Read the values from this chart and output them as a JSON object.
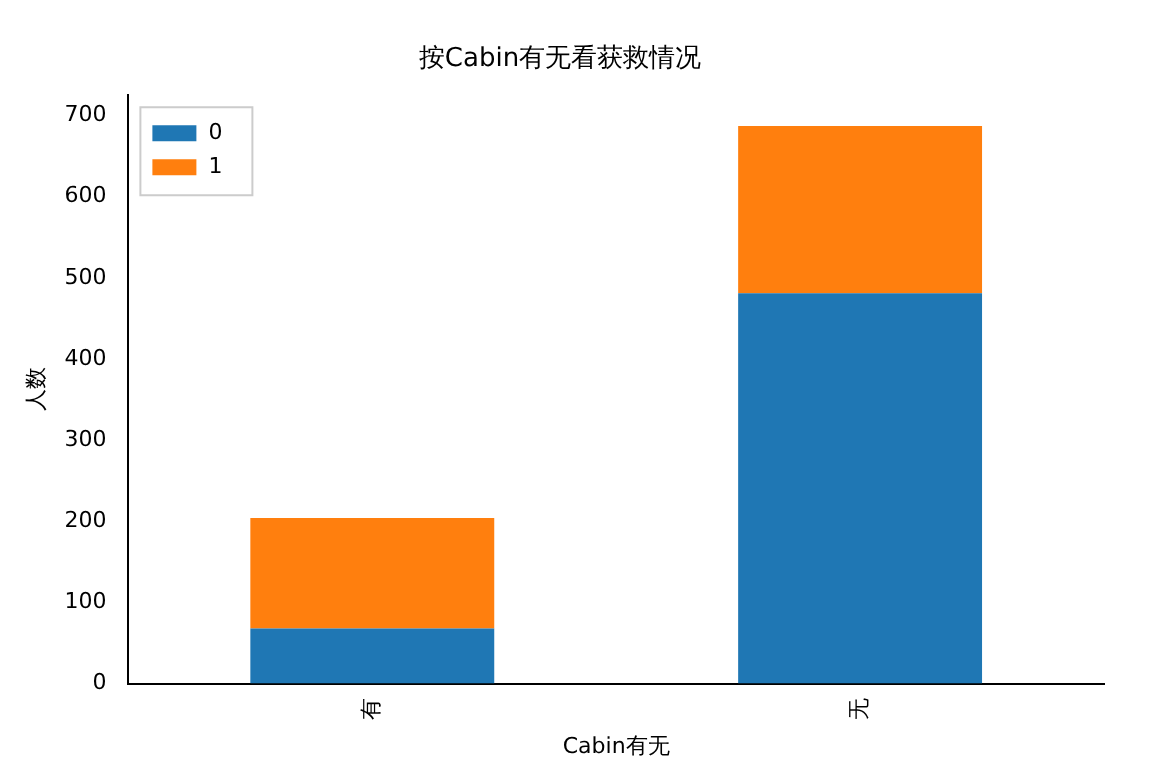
{
  "chart_data": {
    "type": "bar",
    "title": "按Cabin有无看获救情况",
    "xlabel": "Cabin有无",
    "ylabel": "人数",
    "categories": [
      "有",
      "无"
    ],
    "stacked": true,
    "series": [
      {
        "name": "0",
        "color": "#1f77b4",
        "values": [
          68,
          481
        ]
      },
      {
        "name": "1",
        "color": "#ff7f0e",
        "values": [
          136,
          206
        ]
      }
    ],
    "ylim": [
      0,
      725
    ],
    "yticks": [
      0,
      100,
      200,
      300,
      400,
      500,
      600,
      700
    ],
    "legend": "top left",
    "grid": false
  }
}
